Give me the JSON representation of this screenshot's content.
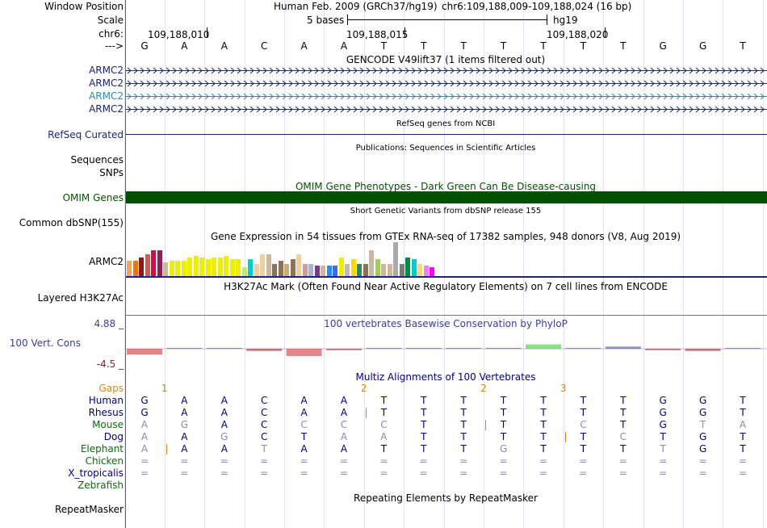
{
  "header": {
    "window_position_label": "Window Position",
    "scale_label": "Scale",
    "chr_label": "chr6:",
    "arrow_label": "--->",
    "assembly": "Human Feb. 2009 (GRCh37/hg19)",
    "position": "chr6:109,188,009-109,188,024 (16 bp)",
    "scale_text": "5 bases",
    "scale_db": "hg19",
    "ticks": [
      "109,188,010",
      "109,188,015",
      "109,188,020"
    ]
  },
  "sequence": [
    "G",
    "A",
    "A",
    "C",
    "A",
    "A",
    "T",
    "T",
    "T",
    "T",
    "T",
    "T",
    "T",
    "G",
    "G",
    "T"
  ],
  "gencode": {
    "title": "GENCODE V49lift37 (1 items filtered out)",
    "genes": [
      {
        "name": "ARMC2",
        "color": "#1a237e"
      },
      {
        "name": "ARMC2",
        "color": "#1a237e"
      },
      {
        "name": "ARMC2",
        "color": "#2a8ab0"
      },
      {
        "name": "ARMC2",
        "color": "#1a237e"
      }
    ]
  },
  "refseq": {
    "label": "RefSeq Curated",
    "title": "RefSeq genes from NCBI",
    "color": "#1a237e"
  },
  "publications": {
    "title": "Publications: Sequences in Scientific Articles",
    "labels": [
      "Sequences",
      "SNPs"
    ]
  },
  "omim": {
    "label": "OMIM Genes",
    "title": "OMIM Gene Phenotypes - Dark Green Can Be Disease-causing",
    "color": "#005200"
  },
  "dbsnp": {
    "label": "Common dbSNP(155)",
    "title": "Short Genetic Variants from dbSNP release 155"
  },
  "gtex": {
    "label": "ARMC2",
    "title": "Gene Expression in 54 tissues from GTEx RNA-seq of 17382 samples, 948 donors (V8, Aug 2019)",
    "bars": [
      {
        "v": 0.45,
        "c": "#f4a460"
      },
      {
        "v": 0.45,
        "c": "#ee7700"
      },
      {
        "v": 0.55,
        "c": "#8b1a1a"
      },
      {
        "v": 0.65,
        "c": "#cd5c5c"
      },
      {
        "v": 0.75,
        "c": "#cc1144"
      },
      {
        "v": 0.75,
        "c": "#8b2252"
      },
      {
        "v": 0.4,
        "c": "#cdb79e"
      },
      {
        "v": 0.45,
        "c": "#eeee00"
      },
      {
        "v": 0.45,
        "c": "#eeee00"
      },
      {
        "v": 0.45,
        "c": "#eeee00"
      },
      {
        "v": 0.55,
        "c": "#eeee00"
      },
      {
        "v": 0.6,
        "c": "#eeee00"
      },
      {
        "v": 0.55,
        "c": "#eeee00"
      },
      {
        "v": 0.5,
        "c": "#eeee00"
      },
      {
        "v": 0.55,
        "c": "#eeee00"
      },
      {
        "v": 0.55,
        "c": "#eeee00"
      },
      {
        "v": 0.6,
        "c": "#eeee00"
      },
      {
        "v": 0.5,
        "c": "#eeee00"
      },
      {
        "v": 0.5,
        "c": "#eeee00"
      },
      {
        "v": 0.25,
        "c": "#bcee68"
      },
      {
        "v": 0.5,
        "c": "#00cdcd"
      },
      {
        "v": 0.35,
        "c": "#eecfa1"
      },
      {
        "v": 0.65,
        "c": "#eecfa1"
      },
      {
        "v": 0.65,
        "c": "#cdb79e"
      },
      {
        "v": 0.35,
        "c": "#8b7355"
      },
      {
        "v": 0.45,
        "c": "#8b7355"
      },
      {
        "v": 0.35,
        "c": "#cdaa7d"
      },
      {
        "v": 0.5,
        "c": "#8b7355"
      },
      {
        "v": 0.65,
        "c": "#eecfa1"
      },
      {
        "v": 0.35,
        "c": "#cd9b9b"
      },
      {
        "v": 0.35,
        "c": "#9fb6cd"
      },
      {
        "v": 0.3,
        "c": "#7a378b"
      },
      {
        "v": 0.3,
        "c": "#cdb79e"
      },
      {
        "v": 0.3,
        "c": "#1e90ff"
      },
      {
        "v": 0.3,
        "c": "#4169e1"
      },
      {
        "v": 0.55,
        "c": "#eeee00"
      },
      {
        "v": 0.35,
        "c": "#cdb79e"
      },
      {
        "v": 0.5,
        "c": "#ffd700"
      },
      {
        "v": 0.35,
        "c": "#2e8b57"
      },
      {
        "v": 0.35,
        "c": "#8b7355"
      },
      {
        "v": 0.75,
        "c": "#cdb79e"
      },
      {
        "v": 0.5,
        "c": "#a2cd5a"
      },
      {
        "v": 0.35,
        "c": "#cdb79e"
      },
      {
        "v": 0.35,
        "c": "#cdb79e"
      },
      {
        "v": 1.0,
        "c": "#aaaaaa"
      },
      {
        "v": 0.35,
        "c": "#7a7a7a"
      },
      {
        "v": 0.55,
        "c": "#008b45"
      },
      {
        "v": 0.5,
        "c": "#00cdcd"
      },
      {
        "v": 0.35,
        "c": "#eedd82"
      },
      {
        "v": 0.3,
        "c": "#ee82ee"
      },
      {
        "v": 0.25,
        "c": "#ff00ff"
      }
    ]
  },
  "h3k27ac": {
    "label": "Layered H3K27Ac",
    "title": "H3K27Ac Mark (Often Found Near Active Regulatory Elements) on 7 cell lines from ENCODE"
  },
  "conservation": {
    "label": "100 Vert. Cons",
    "max": "4.88 _",
    "min": "-4.5 _",
    "title": "100 vertebrates Basewise Conservation by PhyloP",
    "color": "#3c3c9c",
    "scores": [
      -0.8,
      0.05,
      0.05,
      -0.3,
      -1.0,
      -0.2,
      0.05,
      0.05,
      0.05,
      0.1,
      0.6,
      0.05,
      0.3,
      -0.2,
      -0.3,
      0.1
    ]
  },
  "multiz": {
    "title": "Multiz Alignments of 100 Vertebrates",
    "gaps_label": "Gaps",
    "gap_marks": [
      {
        "pos": 0.5,
        "n": "1"
      },
      {
        "pos": 5.5,
        "n": "2"
      },
      {
        "pos": 8.5,
        "n": "2"
      },
      {
        "pos": 10.5,
        "n": "3"
      }
    ],
    "species": [
      {
        "name": "Human",
        "color": "#000080",
        "bases": [
          "G",
          "A",
          "A",
          "C",
          "A",
          "A",
          "T",
          "T",
          "T",
          "T",
          "T",
          "T",
          "T",
          "G",
          "G",
          "T"
        ],
        "dim": []
      },
      {
        "name": "Rhesus",
        "color": "#000080",
        "bases": [
          "G",
          "A",
          "A",
          "C",
          "A",
          "A",
          "T",
          "T",
          "T",
          "T",
          "T",
          "T",
          "T",
          "G",
          "G",
          "T"
        ],
        "dim": []
      },
      {
        "name": "Mouse",
        "color": "#0a6e0a",
        "bases": [
          "A",
          "G",
          "A",
          "C",
          "C",
          "C",
          "C",
          "T",
          "T",
          "T",
          "T",
          "C",
          "T",
          "G",
          "T",
          "A"
        ],
        "dim": [
          0,
          1,
          4,
          5,
          6,
          11,
          14,
          15
        ]
      },
      {
        "name": "Dog",
        "color": "#000080",
        "bases": [
          "A",
          "A",
          "G",
          "C",
          "T",
          "A",
          "A",
          "T",
          "T",
          "T",
          "T",
          "T",
          "C",
          "T",
          "G",
          "T"
        ],
        "dim": [
          0,
          2,
          5,
          6,
          12
        ]
      },
      {
        "name": "Elephant",
        "color": "#0a6e0a",
        "bases": [
          "A",
          "A",
          "A",
          "T",
          "A",
          "A",
          "T",
          "T",
          "T",
          "G",
          "T",
          "T",
          "T",
          "T",
          "G",
          "T"
        ],
        "dim": [
          0,
          3,
          9,
          13
        ]
      },
      {
        "name": "Chicken",
        "color": "#0a6e0a",
        "bases": [
          "=",
          "=",
          "=",
          "=",
          "=",
          "=",
          "=",
          "=",
          "=",
          "=",
          "=",
          "=",
          "=",
          "=",
          "=",
          "="
        ],
        "dim": [
          0,
          1,
          2,
          3,
          4,
          5,
          6,
          7,
          8,
          9,
          10,
          11,
          12,
          13,
          14,
          15
        ]
      },
      {
        "name": "X_tropicalis",
        "color": "#000080",
        "bases": [
          "=",
          "=",
          "=",
          "=",
          "=",
          "=",
          "=",
          "=",
          "=",
          "=",
          "=",
          "=",
          "=",
          "=",
          "=",
          "="
        ],
        "dim": [
          0,
          1,
          2,
          3,
          4,
          5,
          6,
          7,
          8,
          9,
          10,
          11,
          12,
          13,
          14,
          15
        ]
      },
      {
        "name": "Zebrafish",
        "color": "#0a6e0a",
        "bases": [],
        "dim": []
      }
    ],
    "insert_marks": [
      {
        "row": 1,
        "pos": 5.55
      },
      {
        "row": 2,
        "pos": 8.55
      },
      {
        "row": 3,
        "pos": 10.55
      },
      {
        "row": 4,
        "pos": 0.55
      }
    ]
  },
  "repeatmasker": {
    "label": "RepeatMasker",
    "title": "Repeating Elements by RepeatMasker"
  }
}
